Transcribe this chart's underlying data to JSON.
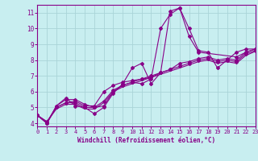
{
  "xlabel": "Windchill (Refroidissement éolien,°C)",
  "xlim": [
    0,
    23
  ],
  "ylim": [
    3.8,
    11.5
  ],
  "xticks": [
    0,
    1,
    2,
    3,
    4,
    5,
    6,
    7,
    8,
    9,
    10,
    11,
    12,
    13,
    14,
    15,
    16,
    17,
    18,
    19,
    20,
    21,
    22,
    23
  ],
  "yticks": [
    4,
    5,
    6,
    7,
    8,
    9,
    10,
    11
  ],
  "background_color": "#c8eef0",
  "line_color": "#880088",
  "grid_color": "#aad4d8",
  "curve1_x": [
    0,
    1,
    2,
    3,
    4,
    5,
    6,
    7,
    8,
    9,
    10,
    11,
    12,
    13,
    14,
    15,
    16,
    17,
    18,
    19,
    20,
    21,
    22,
    23
  ],
  "curve1_y": [
    4.5,
    4.0,
    5.1,
    5.6,
    5.1,
    5.0,
    4.6,
    5.0,
    5.9,
    6.5,
    7.5,
    7.8,
    6.5,
    7.2,
    11.1,
    11.3,
    10.0,
    8.6,
    8.5,
    7.5,
    8.0,
    8.5,
    8.7,
    8.7
  ],
  "curve2_x": [
    0,
    1,
    2,
    3,
    4,
    5,
    6,
    7,
    8,
    9,
    10,
    11,
    12,
    13,
    14,
    15,
    16,
    17,
    21,
    22,
    23
  ],
  "curve2_y": [
    4.5,
    4.0,
    5.1,
    5.5,
    5.5,
    5.2,
    5.0,
    5.1,
    6.0,
    6.4,
    6.6,
    6.5,
    6.8,
    10.0,
    10.9,
    11.3,
    9.5,
    8.5,
    8.2,
    8.5,
    8.7
  ],
  "curve3_x": [
    0,
    1,
    2,
    3,
    4,
    5,
    6,
    7,
    8,
    9,
    10,
    11,
    12,
    13,
    14,
    15,
    16,
    17,
    18,
    19,
    20,
    21,
    22,
    23
  ],
  "curve3_y": [
    4.5,
    4.0,
    5.0,
    5.3,
    5.4,
    5.1,
    5.1,
    6.0,
    6.4,
    6.6,
    6.7,
    6.8,
    6.9,
    7.2,
    7.4,
    7.8,
    7.9,
    8.1,
    8.2,
    8.0,
    8.1,
    8.0,
    8.5,
    8.7
  ],
  "curve4_x": [
    0,
    1,
    2,
    3,
    4,
    5,
    6,
    7,
    8,
    9,
    10,
    11,
    12,
    13,
    14,
    15,
    16,
    17,
    18,
    19,
    20,
    21,
    22,
    23
  ],
  "curve4_y": [
    4.5,
    4.1,
    5.0,
    5.3,
    5.3,
    5.0,
    5.0,
    5.4,
    6.1,
    6.4,
    6.6,
    6.8,
    7.0,
    7.2,
    7.4,
    7.6,
    7.8,
    8.0,
    8.1,
    7.9,
    8.0,
    7.9,
    8.4,
    8.6
  ],
  "curve5_x": [
    0,
    1,
    2,
    3,
    4,
    5,
    6,
    7,
    8,
    9,
    10,
    11,
    12,
    13,
    14,
    15,
    16,
    17,
    18,
    19,
    20,
    21,
    22,
    23
  ],
  "curve5_y": [
    4.5,
    4.1,
    4.9,
    5.2,
    5.2,
    4.9,
    4.9,
    5.3,
    6.0,
    6.3,
    6.5,
    6.7,
    6.9,
    7.1,
    7.3,
    7.5,
    7.7,
    7.9,
    8.0,
    7.8,
    7.9,
    7.8,
    8.3,
    8.55
  ]
}
